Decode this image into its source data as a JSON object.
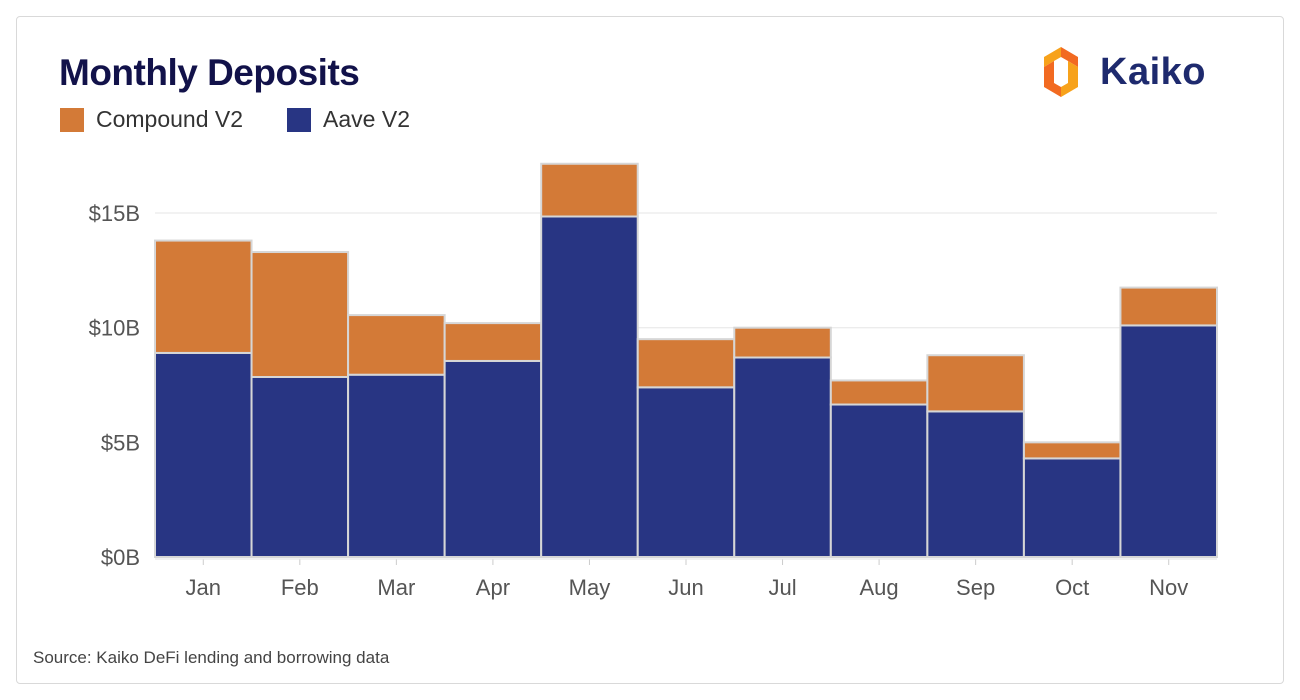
{
  "header": {
    "title": "Monthly Deposits"
  },
  "brand": {
    "name": "Kaiko",
    "logo_icon": "kaiko-logo-icon"
  },
  "colors": {
    "compound": "#d37a37",
    "aave": "#283583",
    "grid": "#e6e6e6",
    "title": "#12124a"
  },
  "legend": {
    "items": [
      {
        "label": "Compound V2",
        "color": "#d37a37"
      },
      {
        "label": "Aave V2",
        "color": "#283583"
      }
    ]
  },
  "chart_data": {
    "type": "bar",
    "stacked": true,
    "title": "Monthly Deposits",
    "xlabel": "",
    "ylabel": "",
    "categories": [
      "Jan",
      "Feb",
      "Mar",
      "Apr",
      "May",
      "Jun",
      "Jul",
      "Aug",
      "Sep",
      "Oct",
      "Nov"
    ],
    "series": [
      {
        "name": "Aave V2",
        "color": "#283583",
        "values": [
          8.9,
          7.85,
          7.95,
          8.55,
          14.85,
          7.4,
          8.7,
          6.65,
          6.35,
          4.3,
          10.1
        ]
      },
      {
        "name": "Compound V2",
        "color": "#d37a37",
        "values": [
          4.9,
          5.45,
          2.6,
          1.65,
          2.3,
          2.1,
          1.3,
          1.05,
          2.45,
          0.7,
          1.65
        ]
      }
    ],
    "yticks": [
      {
        "value": 0,
        "label": "$0B"
      },
      {
        "value": 5,
        "label": "$5B"
      },
      {
        "value": 10,
        "label": "$10B"
      },
      {
        "value": 15,
        "label": "$15B"
      }
    ],
    "ylim": [
      0,
      17.75
    ],
    "grid": true,
    "legend_position": "top-left"
  },
  "footer": {
    "source": "Source: Kaiko DeFi lending and borrowing data"
  }
}
